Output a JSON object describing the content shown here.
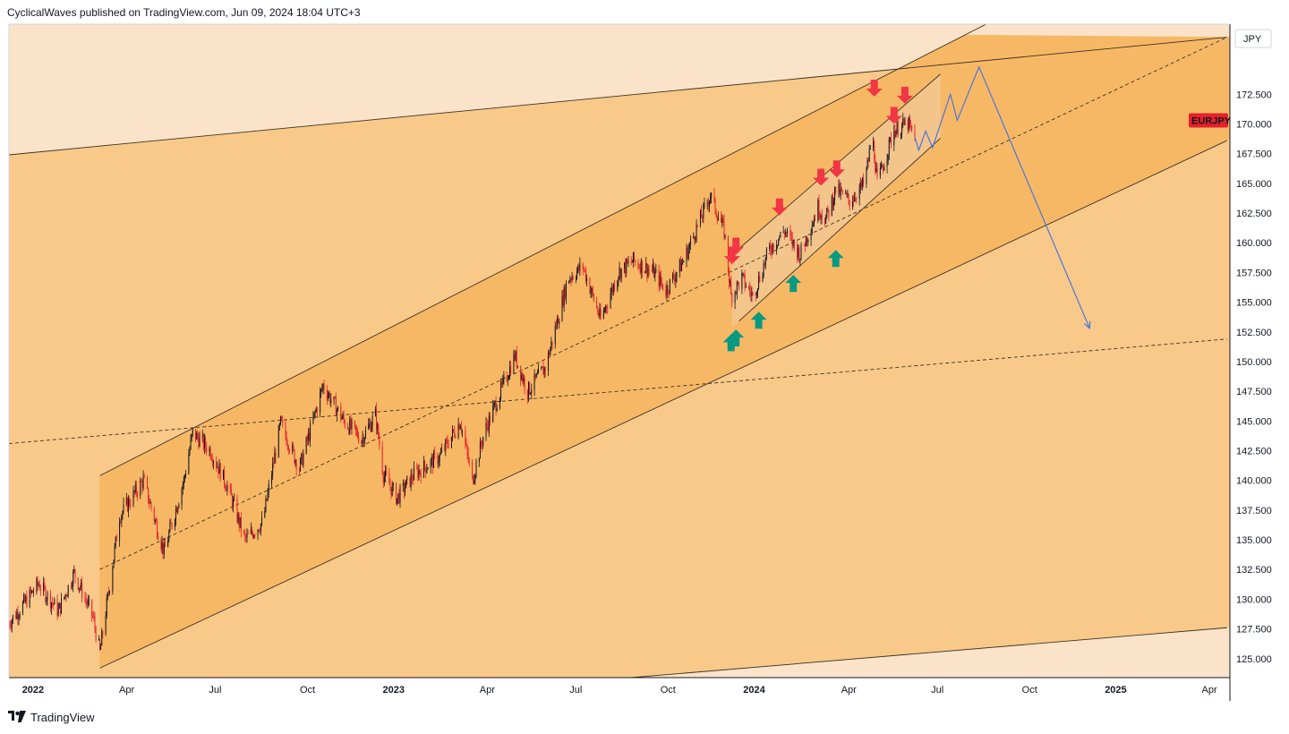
{
  "header": {
    "published_line": "CyclicalWaves published on TradingView.com, Jun 09, 2024 18:04 UTC+3"
  },
  "footer": {
    "brand": "TradingView"
  },
  "colors": {
    "background_outer": "#fbe3c9",
    "band_outer": "#f9c98a",
    "band_inner": "#f7b866",
    "small_channel": "#f2c792",
    "candle_up": "#131722",
    "candle_down": "#e8202a",
    "down_arrow": "#f23645",
    "up_arrow": "#089981",
    "projection_line": "#4a76d9",
    "symbol_badge": "#e8202a"
  },
  "chart_data": {
    "type": "candlestick",
    "symbol": "EURJPY",
    "currency": "JPY",
    "x_tick_labels": [
      "2022",
      "Apr",
      "Jul",
      "Oct",
      "2023",
      "Apr",
      "Jul",
      "Oct",
      "2024",
      "Apr",
      "Jul",
      "Oct",
      "2025",
      "Apr"
    ],
    "x_tick_dates": [
      "2022-01-01",
      "2022-04-01",
      "2022-07-01",
      "2022-10-01",
      "2023-01-01",
      "2023-04-01",
      "2023-07-01",
      "2023-10-01",
      "2024-01-01",
      "2024-04-01",
      "2024-07-01",
      "2024-10-01",
      "2025-01-01",
      "2025-04-01"
    ],
    "x_range": [
      "2021-12-06",
      "2025-04-25"
    ],
    "y_tick_labels": [
      "125.000",
      "127.500",
      "130.000",
      "132.500",
      "135.000",
      "137.500",
      "140.000",
      "142.500",
      "145.000",
      "147.500",
      "150.000",
      "152.500",
      "155.000",
      "157.500",
      "160.000",
      "162.500",
      "165.000",
      "167.500",
      "170.000",
      "172.500"
    ],
    "y_range": [
      123.4,
      178.4
    ],
    "last_price_label": "EURJPY",
    "price_path": [
      {
        "date": "2021-12-06",
        "value": 128.0
      },
      {
        "date": "2021-12-20",
        "value": 129.5
      },
      {
        "date": "2022-01-05",
        "value": 131.3
      },
      {
        "date": "2022-01-25",
        "value": 129.0
      },
      {
        "date": "2022-02-10",
        "value": 132.2
      },
      {
        "date": "2022-03-01",
        "value": 128.5
      },
      {
        "date": "2022-03-08",
        "value": 125.5
      },
      {
        "date": "2022-03-28",
        "value": 137.0
      },
      {
        "date": "2022-04-21",
        "value": 140.0
      },
      {
        "date": "2022-05-12",
        "value": 134.0
      },
      {
        "date": "2022-06-01",
        "value": 140.0
      },
      {
        "date": "2022-06-10",
        "value": 144.0
      },
      {
        "date": "2022-06-28",
        "value": 142.5
      },
      {
        "date": "2022-07-15",
        "value": 139.5
      },
      {
        "date": "2022-08-02",
        "value": 135.0
      },
      {
        "date": "2022-08-20",
        "value": 136.5
      },
      {
        "date": "2022-09-07",
        "value": 144.8
      },
      {
        "date": "2022-09-26",
        "value": 141.0
      },
      {
        "date": "2022-10-20",
        "value": 148.0
      },
      {
        "date": "2022-11-10",
        "value": 145.0
      },
      {
        "date": "2022-11-28",
        "value": 143.5
      },
      {
        "date": "2022-12-12",
        "value": 145.5
      },
      {
        "date": "2022-12-20",
        "value": 140.5
      },
      {
        "date": "2023-01-03",
        "value": 138.5
      },
      {
        "date": "2023-01-20",
        "value": 140.5
      },
      {
        "date": "2023-02-15",
        "value": 142.0
      },
      {
        "date": "2023-03-08",
        "value": 145.0
      },
      {
        "date": "2023-03-20",
        "value": 140.0
      },
      {
        "date": "2023-04-01",
        "value": 144.0
      },
      {
        "date": "2023-05-02",
        "value": 150.5
      },
      {
        "date": "2023-05-15",
        "value": 147.5
      },
      {
        "date": "2023-06-02",
        "value": 149.5
      },
      {
        "date": "2023-06-25",
        "value": 157.0
      },
      {
        "date": "2023-07-10",
        "value": 158.0
      },
      {
        "date": "2023-07-28",
        "value": 153.5
      },
      {
        "date": "2023-08-15",
        "value": 157.5
      },
      {
        "date": "2023-08-30",
        "value": 158.5
      },
      {
        "date": "2023-09-20",
        "value": 157.5
      },
      {
        "date": "2023-10-02",
        "value": 156.0
      },
      {
        "date": "2023-10-20",
        "value": 158.5
      },
      {
        "date": "2023-11-01",
        "value": 161.0
      },
      {
        "date": "2023-11-16",
        "value": 164.0
      },
      {
        "date": "2023-11-30",
        "value": 161.0
      },
      {
        "date": "2023-12-07",
        "value": 155.5
      },
      {
        "date": "2023-12-18",
        "value": 157.0
      },
      {
        "date": "2023-12-29",
        "value": 155.5
      },
      {
        "date": "2024-01-15",
        "value": 159.5
      },
      {
        "date": "2024-01-30",
        "value": 161.0
      },
      {
        "date": "2024-02-15",
        "value": 159.0
      },
      {
        "date": "2024-03-04",
        "value": 163.0
      },
      {
        "date": "2024-03-12",
        "value": 162.0
      },
      {
        "date": "2024-03-22",
        "value": 164.5
      },
      {
        "date": "2024-04-05",
        "value": 163.5
      },
      {
        "date": "2024-04-20",
        "value": 165.0
      },
      {
        "date": "2024-04-28",
        "value": 169.0
      },
      {
        "date": "2024-05-03",
        "value": 165.0
      },
      {
        "date": "2024-05-20",
        "value": 169.5
      },
      {
        "date": "2024-06-03",
        "value": 170.0
      },
      {
        "date": "2024-06-10",
        "value": 168.7
      }
    ],
    "projection_path": [
      {
        "date": "2024-06-10",
        "value": 168.9
      },
      {
        "date": "2024-06-14",
        "value": 167.8
      },
      {
        "date": "2024-06-21",
        "value": 169.4
      },
      {
        "date": "2024-06-28",
        "value": 168.0
      },
      {
        "date": "2024-07-16",
        "value": 172.5
      },
      {
        "date": "2024-07-23",
        "value": 170.3
      },
      {
        "date": "2024-08-14",
        "value": 174.8
      },
      {
        "date": "2024-12-04",
        "value": 152.8
      }
    ],
    "sell_signals": [
      {
        "date": "2023-12-08",
        "value": 158.2
      },
      {
        "date": "2023-12-12",
        "value": 159.0
      },
      {
        "date": "2024-01-25",
        "value": 162.3
      },
      {
        "date": "2024-03-07",
        "value": 164.8
      },
      {
        "date": "2024-03-23",
        "value": 165.5
      },
      {
        "date": "2024-04-30",
        "value": 172.3
      },
      {
        "date": "2024-05-20",
        "value": 170.0
      },
      {
        "date": "2024-05-31",
        "value": 171.7
      }
    ],
    "buy_signals": [
      {
        "date": "2023-12-07",
        "value": 152.3
      },
      {
        "date": "2023-12-12",
        "value": 152.7
      },
      {
        "date": "2024-01-04",
        "value": 154.2
      },
      {
        "date": "2024-02-08",
        "value": 157.3
      },
      {
        "date": "2024-03-22",
        "value": 159.4
      }
    ],
    "trendlines": [
      {
        "name": "big-channel-upper",
        "style": "solid",
        "from": {
          "date": "2022-03-08",
          "value": 140.4
        },
        "to": {
          "date": "2024-07-31",
          "value": 177.5
        }
      },
      {
        "name": "big-channel-lower",
        "style": "solid",
        "from": {
          "date": "2022-03-08",
          "value": 124.2
        },
        "to": {
          "date": "2025-04-22",
          "value": 168.6
        }
      },
      {
        "name": "big-channel-mid",
        "style": "dashed",
        "from": {
          "date": "2022-03-08",
          "value": 132.5
        },
        "to": {
          "date": "2025-04-22",
          "value": 177.3
        }
      },
      {
        "name": "top-line",
        "style": "solid",
        "from": {
          "date": "2021-12-06",
          "value": 167.4
        },
        "to": {
          "date": "2025-04-22",
          "value": 177.3
        }
      },
      {
        "name": "bottom-line",
        "style": "solid",
        "from": {
          "date": "2023-08-28",
          "value": 123.4
        },
        "to": {
          "date": "2025-04-22",
          "value": 127.6
        }
      },
      {
        "name": "long-dashed",
        "style": "dashed",
        "from": {
          "date": "2021-12-06",
          "value": 143.1
        },
        "to": {
          "date": "2025-04-22",
          "value": 151.9
        }
      },
      {
        "name": "small-channel-upper",
        "style": "solid",
        "from": {
          "date": "2023-12-08",
          "value": 159.0
        },
        "to": {
          "date": "2024-07-06",
          "value": 174.2
        }
      },
      {
        "name": "small-channel-lower",
        "style": "solid",
        "from": {
          "date": "2023-12-15",
          "value": 153.4
        },
        "to": {
          "date": "2024-07-06",
          "value": 168.8
        }
      }
    ]
  }
}
